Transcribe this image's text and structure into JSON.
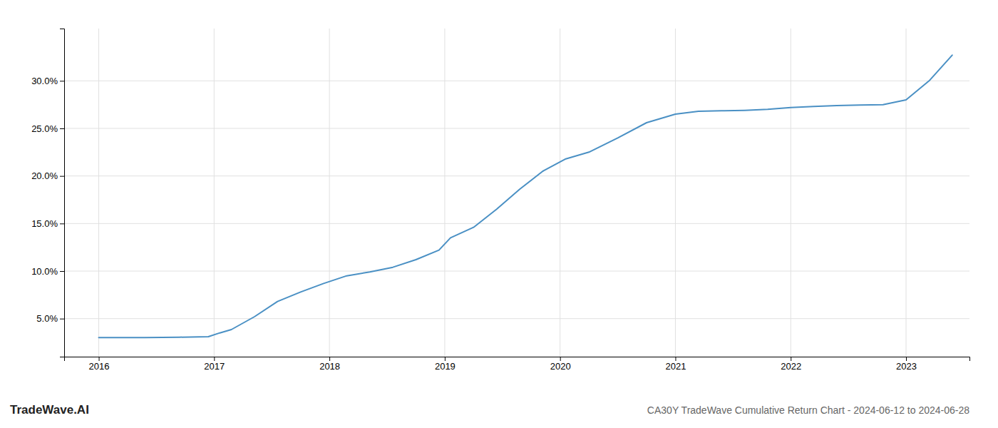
{
  "chart_data": {
    "type": "line",
    "title": "CA30Y TradeWave Cumulative Return Chart - 2024-06-12 to 2024-06-28",
    "annotations": [
      {
        "text": "TradeWave.AI"
      }
    ],
    "color": "#4a90c4",
    "x": [
      2016.0,
      2016.1,
      2016.4,
      2016.7,
      2016.95,
      2017.05,
      2017.15,
      2017.35,
      2017.55,
      2017.75,
      2017.95,
      2018.15,
      2018.35,
      2018.55,
      2018.75,
      2018.95,
      2019.05,
      2019.25,
      2019.45,
      2019.65,
      2019.85,
      2020.05,
      2020.25,
      2020.5,
      2020.75,
      2021.0,
      2021.2,
      2021.4,
      2021.6,
      2021.8,
      2022.0,
      2022.2,
      2022.4,
      2022.6,
      2022.8,
      2023.0,
      2023.2,
      2023.4
    ],
    "values": [
      3.0,
      3.0,
      3.0,
      3.05,
      3.1,
      3.5,
      3.85,
      5.2,
      6.8,
      7.8,
      8.7,
      9.5,
      9.9,
      10.4,
      11.2,
      12.2,
      13.5,
      14.6,
      16.5,
      18.6,
      20.5,
      21.8,
      22.5,
      24.0,
      25.6,
      26.5,
      26.8,
      26.85,
      26.9,
      27.0,
      27.2,
      27.3,
      27.4,
      27.45,
      27.5,
      28.0,
      30.0,
      32.7
    ],
    "xlim": [
      2015.7,
      2023.55
    ],
    "xticks": [
      2016,
      2017,
      2018,
      2019,
      2020,
      2021,
      2022,
      2023
    ],
    "ylim": [
      1.0,
      35.5
    ],
    "yticks": [
      {
        "value": 5.0,
        "label": "5.0%"
      },
      {
        "value": 10.0,
        "label": "10.0%"
      },
      {
        "value": 15.0,
        "label": "15.0%"
      },
      {
        "value": 20.0,
        "label": "20.0%"
      },
      {
        "value": 25.0,
        "label": "25.0%"
      },
      {
        "value": 30.0,
        "label": "30.0%"
      }
    ],
    "grid": true
  }
}
